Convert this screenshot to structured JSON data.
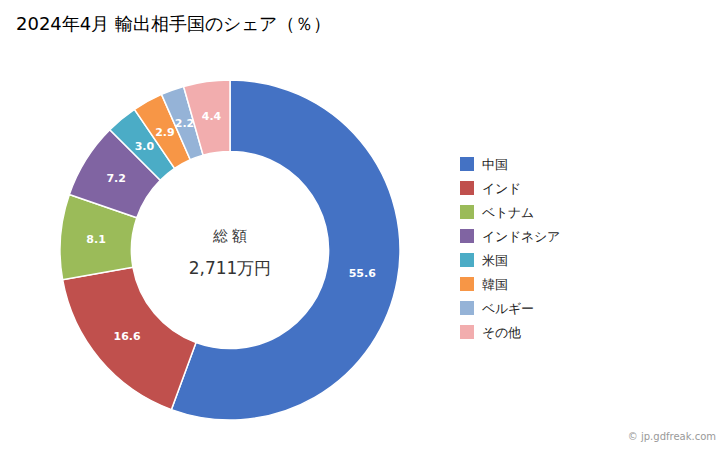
{
  "chart_data": {
    "type": "donut",
    "title": "2024年4月 輸出相手国のシェア（％）",
    "categories": [
      "中国",
      "インド",
      "ベトナム",
      "インドネシア",
      "米国",
      "韓国",
      "ベルギー",
      "その他"
    ],
    "values": [
      55.6,
      16.6,
      8.1,
      7.2,
      3.0,
      2.9,
      2.2,
      4.4
    ],
    "value_labels": [
      "55.6",
      "16.6",
      "8.1",
      "7.2",
      "3.0",
      "2.9",
      "2.2",
      "4.4"
    ],
    "colors": [
      "#4472C4",
      "#C0504D",
      "#9BBB59",
      "#8064A2",
      "#4BACC6",
      "#F79646",
      "#95B3D7",
      "#F2ADAE"
    ],
    "data_labels": true,
    "legend": "right",
    "annotations": [
      "総 額",
      "2,711万円",
      "© jp.gdfreak.com"
    ]
  }
}
